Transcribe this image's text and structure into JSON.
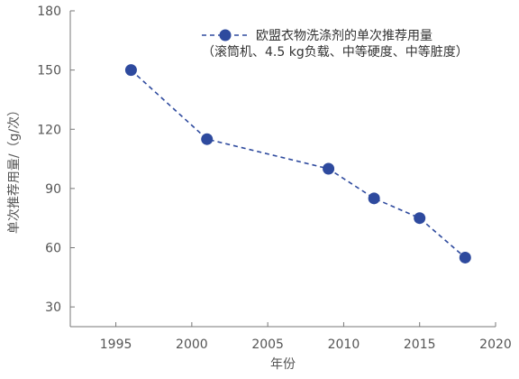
{
  "chart_data": {
    "type": "line",
    "xlabel": "年份",
    "ylabel": "单次推荐用量/（g/次）",
    "xlim": [
      1992,
      2020
    ],
    "ylim": [
      20,
      180
    ],
    "xticks": [
      "1995",
      "2000",
      "2005",
      "2010",
      "2015",
      "2020"
    ],
    "yticks": [
      "30",
      "60",
      "90",
      "120",
      "150",
      "180"
    ],
    "grid": false,
    "legend_position": "top-right",
    "series": [
      {
        "name": "欧盟衣物洗涤剂的单次推荐用量",
        "note": "（滚筒机、4.5 kg负载、中等硬度、中等脏度）",
        "color": "#2e4a9e",
        "line_style": "dashed",
        "marker": "circle",
        "x": [
          1996,
          2001,
          2009,
          2012,
          2015,
          2018
        ],
        "y": [
          150,
          115,
          100,
          85,
          75,
          55
        ]
      }
    ]
  }
}
